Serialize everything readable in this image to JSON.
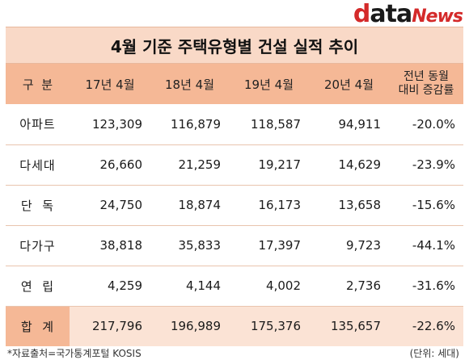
{
  "logo": {
    "part1": "d",
    "part2": "ata",
    "part3": "News"
  },
  "title": "4월 기준 주택유형별 건설 실적 추이",
  "headers": [
    "구  분",
    "17년 4월",
    "18년 4월",
    "19년 4월",
    "20년 4월",
    "전년 동월\n대비 증감률"
  ],
  "rows": [
    {
      "label": "아파트",
      "values": [
        "123,309",
        "116,879",
        "118,587",
        "94,911",
        "-20.0%"
      ]
    },
    {
      "label": "다세대",
      "values": [
        "26,660",
        "21,259",
        "19,217",
        "14,629",
        "-23.9%"
      ]
    },
    {
      "label": "단  독",
      "values": [
        "24,750",
        "18,874",
        "16,173",
        "13,658",
        "-15.6%"
      ]
    },
    {
      "label": "다가구",
      "values": [
        "38,818",
        "35,833",
        "17,397",
        "9,723",
        "-44.1%"
      ]
    },
    {
      "label": "연  립",
      "values": [
        "4,259",
        "4,144",
        "4,002",
        "2,736",
        "-31.6%"
      ]
    },
    {
      "label": "합  계",
      "values": [
        "217,796",
        "196,989",
        "175,376",
        "135,657",
        "-22.6%"
      ]
    }
  ],
  "footer": {
    "source": "*자료출처=국가통계포털 KOSIS",
    "unit": "(단위: 세대)"
  }
}
